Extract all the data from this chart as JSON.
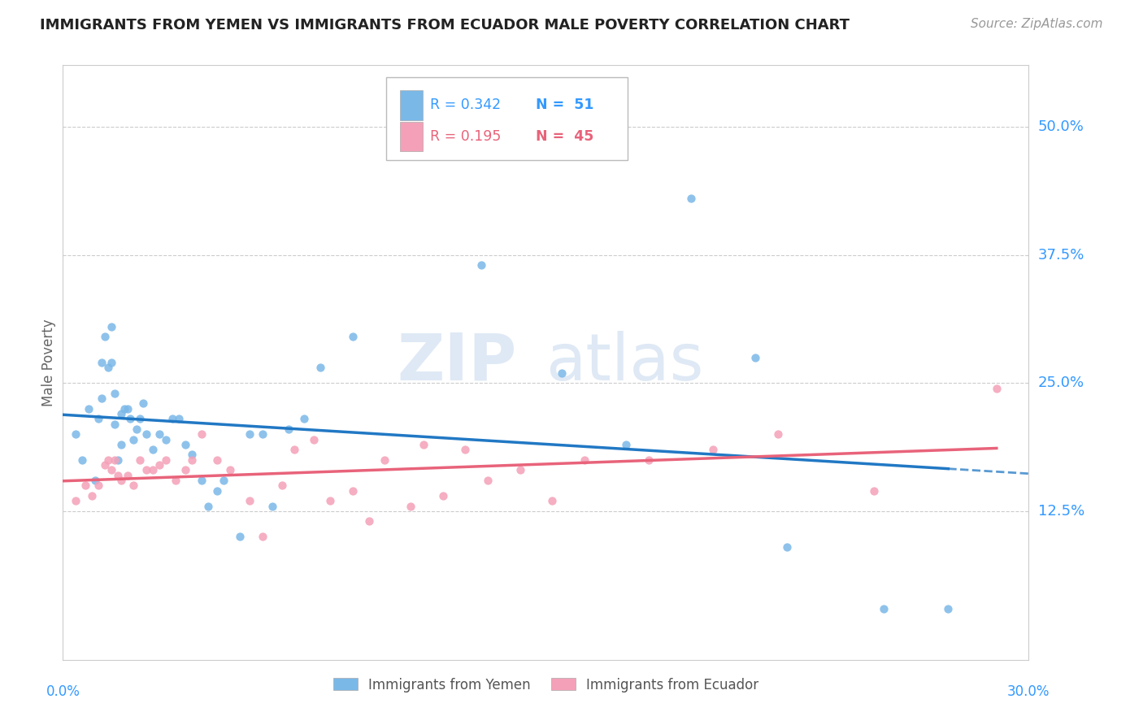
{
  "title": "IMMIGRANTS FROM YEMEN VS IMMIGRANTS FROM ECUADOR MALE POVERTY CORRELATION CHART",
  "source": "Source: ZipAtlas.com",
  "ylabel": "Male Poverty",
  "ytick_labels": [
    "50.0%",
    "37.5%",
    "25.0%",
    "12.5%"
  ],
  "ytick_values": [
    0.5,
    0.375,
    0.25,
    0.125
  ],
  "xlim": [
    0.0,
    0.3
  ],
  "ylim": [
    -0.02,
    0.56
  ],
  "legend_r_yemen": "R = 0.342",
  "legend_n_yemen": "N =  51",
  "legend_r_ecuador": "R = 0.195",
  "legend_n_ecuador": "N =  45",
  "legend_label_yemen": "Immigrants from Yemen",
  "legend_label_ecuador": "Immigrants from Ecuador",
  "color_yemen": "#7ab8e8",
  "color_ecuador": "#f4a0b8",
  "color_line_yemen": "#2178c4",
  "color_line_ecuador": "#e8637a",
  "watermark_zip": "ZIP",
  "watermark_atlas": "atlas",
  "background_color": "#ffffff",
  "grid_color": "#cccccc",
  "yemen_x": [
    0.004,
    0.006,
    0.008,
    0.01,
    0.011,
    0.012,
    0.012,
    0.013,
    0.014,
    0.015,
    0.015,
    0.016,
    0.016,
    0.017,
    0.018,
    0.018,
    0.019,
    0.02,
    0.021,
    0.022,
    0.023,
    0.024,
    0.025,
    0.026,
    0.028,
    0.03,
    0.032,
    0.034,
    0.036,
    0.038,
    0.04,
    0.043,
    0.045,
    0.048,
    0.05,
    0.055,
    0.058,
    0.062,
    0.065,
    0.07,
    0.075,
    0.08,
    0.09,
    0.13,
    0.155,
    0.175,
    0.195,
    0.215,
    0.225,
    0.255,
    0.275
  ],
  "yemen_y": [
    0.2,
    0.175,
    0.225,
    0.155,
    0.215,
    0.235,
    0.27,
    0.295,
    0.265,
    0.305,
    0.27,
    0.24,
    0.21,
    0.175,
    0.22,
    0.19,
    0.225,
    0.225,
    0.215,
    0.195,
    0.205,
    0.215,
    0.23,
    0.2,
    0.185,
    0.2,
    0.195,
    0.215,
    0.215,
    0.19,
    0.18,
    0.155,
    0.13,
    0.145,
    0.155,
    0.1,
    0.2,
    0.2,
    0.13,
    0.205,
    0.215,
    0.265,
    0.295,
    0.365,
    0.26,
    0.19,
    0.43,
    0.275,
    0.09,
    0.03,
    0.03
  ],
  "ecuador_x": [
    0.004,
    0.007,
    0.009,
    0.011,
    0.013,
    0.014,
    0.015,
    0.016,
    0.017,
    0.018,
    0.02,
    0.022,
    0.024,
    0.026,
    0.028,
    0.03,
    0.032,
    0.035,
    0.038,
    0.04,
    0.043,
    0.048,
    0.052,
    0.058,
    0.062,
    0.068,
    0.072,
    0.078,
    0.083,
    0.09,
    0.095,
    0.1,
    0.108,
    0.112,
    0.118,
    0.125,
    0.132,
    0.142,
    0.152,
    0.162,
    0.182,
    0.202,
    0.222,
    0.252,
    0.29
  ],
  "ecuador_y": [
    0.135,
    0.15,
    0.14,
    0.15,
    0.17,
    0.175,
    0.165,
    0.175,
    0.16,
    0.155,
    0.16,
    0.15,
    0.175,
    0.165,
    0.165,
    0.17,
    0.175,
    0.155,
    0.165,
    0.175,
    0.2,
    0.175,
    0.165,
    0.135,
    0.1,
    0.15,
    0.185,
    0.195,
    0.135,
    0.145,
    0.115,
    0.175,
    0.13,
    0.19,
    0.14,
    0.185,
    0.155,
    0.165,
    0.135,
    0.175,
    0.175,
    0.185,
    0.2,
    0.145,
    0.245
  ]
}
